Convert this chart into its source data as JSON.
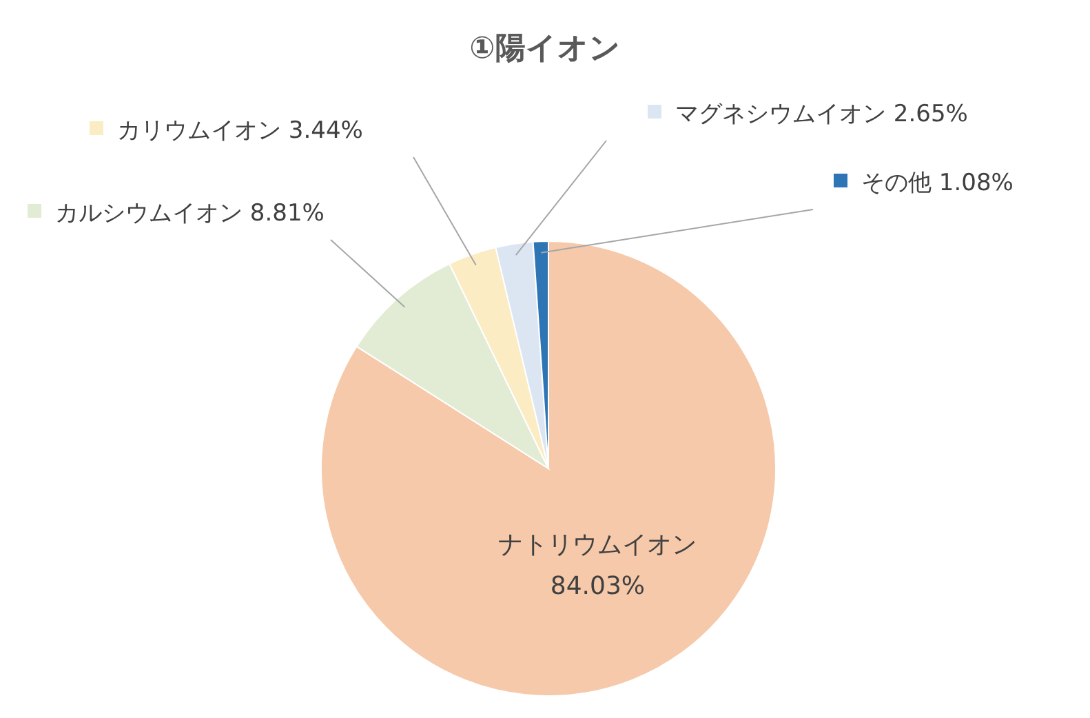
{
  "chart_data": {
    "type": "pie",
    "title": "①陽イオン",
    "categories": [
      "ナトリウムイオン",
      "カルシウムイオン",
      "カリウムイオン",
      "マグネシウムイオン",
      "その他"
    ],
    "values": [
      84.03,
      8.81,
      3.44,
      2.65,
      1.08
    ],
    "value_labels": [
      "84.03%",
      "8.81%",
      "3.44%",
      "2.65%",
      "1.08%"
    ],
    "legend": "top",
    "colors": [
      "#f5c9a9",
      "#e2ecd5",
      "#fbecc4",
      "#dce6f2",
      "#2e75b6"
    ]
  }
}
